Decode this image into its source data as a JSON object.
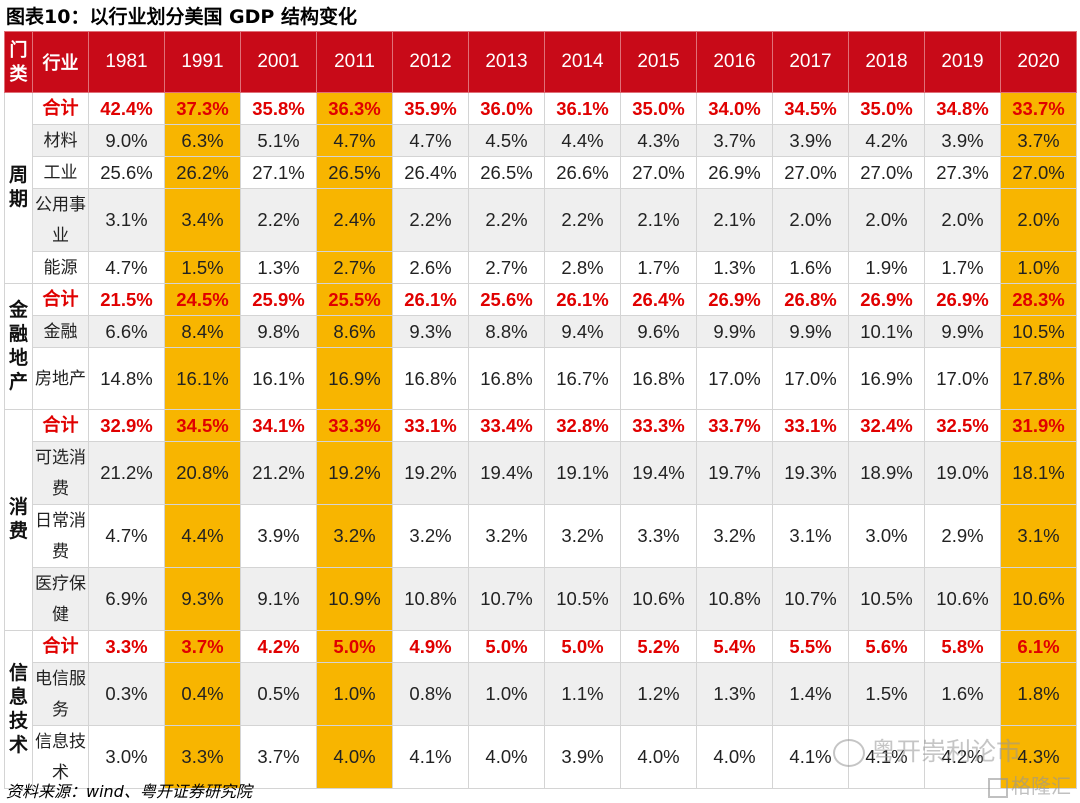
{
  "title": "图表10：以行业划分美国 GDP 结构变化",
  "header": {
    "category": "门类",
    "industry": "行业",
    "years": [
      "1981",
      "1991",
      "2001",
      "2011",
      "2012",
      "2013",
      "2014",
      "2015",
      "2016",
      "2017",
      "2018",
      "2019",
      "2020"
    ]
  },
  "highlight_color": "#f8b500",
  "header_color": "#c80a18",
  "groups": [
    {
      "name": "周期",
      "rows": [
        {
          "label": "合计",
          "total": true,
          "values": [
            "42.4%",
            "37.3%",
            "35.8%",
            "36.3%",
            "35.9%",
            "36.0%",
            "36.1%",
            "35.0%",
            "34.0%",
            "34.5%",
            "35.0%",
            "34.8%",
            "33.7%"
          ]
        },
        {
          "label": "材料",
          "values": [
            "9.0%",
            "6.3%",
            "5.1%",
            "4.7%",
            "4.7%",
            "4.5%",
            "4.4%",
            "4.3%",
            "3.7%",
            "3.9%",
            "4.2%",
            "3.9%",
            "3.7%"
          ]
        },
        {
          "label": "工业",
          "values": [
            "25.6%",
            "26.2%",
            "27.1%",
            "26.5%",
            "26.4%",
            "26.5%",
            "26.6%",
            "27.0%",
            "26.9%",
            "27.0%",
            "27.0%",
            "27.3%",
            "27.0%"
          ]
        },
        {
          "label": "公用事业",
          "values": [
            "3.1%",
            "3.4%",
            "2.2%",
            "2.4%",
            "2.2%",
            "2.2%",
            "2.2%",
            "2.1%",
            "2.1%",
            "2.0%",
            "2.0%",
            "2.0%",
            "2.0%"
          ]
        },
        {
          "label": "能源",
          "values": [
            "4.7%",
            "1.5%",
            "1.3%",
            "2.7%",
            "2.6%",
            "2.7%",
            "2.8%",
            "1.7%",
            "1.3%",
            "1.6%",
            "1.9%",
            "1.7%",
            "1.0%"
          ]
        }
      ]
    },
    {
      "name": "金融地产",
      "rows": [
        {
          "label": "合计",
          "total": true,
          "values": [
            "21.5%",
            "24.5%",
            "25.9%",
            "25.5%",
            "26.1%",
            "25.6%",
            "26.1%",
            "26.4%",
            "26.9%",
            "26.8%",
            "26.9%",
            "26.9%",
            "28.3%"
          ]
        },
        {
          "label": "金融",
          "values": [
            "6.6%",
            "8.4%",
            "9.8%",
            "8.6%",
            "9.3%",
            "8.8%",
            "9.4%",
            "9.6%",
            "9.9%",
            "9.9%",
            "10.1%",
            "9.9%",
            "10.5%"
          ]
        },
        {
          "label": "房地产",
          "values": [
            "14.8%",
            "16.1%",
            "16.1%",
            "16.9%",
            "16.8%",
            "16.8%",
            "16.7%",
            "16.8%",
            "17.0%",
            "17.0%",
            "16.9%",
            "17.0%",
            "17.8%"
          ]
        }
      ]
    },
    {
      "name": "消费",
      "rows": [
        {
          "label": "合计",
          "total": true,
          "values": [
            "32.9%",
            "34.5%",
            "34.1%",
            "33.3%",
            "33.1%",
            "33.4%",
            "32.8%",
            "33.3%",
            "33.7%",
            "33.1%",
            "32.4%",
            "32.5%",
            "31.9%"
          ]
        },
        {
          "label": "可选消费",
          "values": [
            "21.2%",
            "20.8%",
            "21.2%",
            "19.2%",
            "19.2%",
            "19.4%",
            "19.1%",
            "19.4%",
            "19.7%",
            "19.3%",
            "18.9%",
            "19.0%",
            "18.1%"
          ]
        },
        {
          "label": "日常消费",
          "values": [
            "4.7%",
            "4.4%",
            "3.9%",
            "3.2%",
            "3.2%",
            "3.2%",
            "3.2%",
            "3.3%",
            "3.2%",
            "3.1%",
            "3.0%",
            "2.9%",
            "3.1%"
          ]
        },
        {
          "label": "医疗保健",
          "values": [
            "6.9%",
            "9.3%",
            "9.1%",
            "10.9%",
            "10.8%",
            "10.7%",
            "10.5%",
            "10.6%",
            "10.8%",
            "10.7%",
            "10.5%",
            "10.6%",
            "10.6%"
          ]
        }
      ]
    },
    {
      "name": "信息技术",
      "rows": [
        {
          "label": "合计",
          "total": true,
          "values": [
            "3.3%",
            "3.7%",
            "4.2%",
            "5.0%",
            "4.9%",
            "5.0%",
            "5.0%",
            "5.2%",
            "5.4%",
            "5.5%",
            "5.6%",
            "5.8%",
            "6.1%"
          ]
        },
        {
          "label": "电信服务",
          "values": [
            "0.3%",
            "0.4%",
            "0.5%",
            "1.0%",
            "0.8%",
            "1.0%",
            "1.1%",
            "1.2%",
            "1.3%",
            "1.4%",
            "1.5%",
            "1.6%",
            "1.8%"
          ]
        },
        {
          "label": "信息技术",
          "values": [
            "3.0%",
            "3.3%",
            "3.7%",
            "4.0%",
            "4.1%",
            "4.0%",
            "3.9%",
            "4.0%",
            "4.0%",
            "4.1%",
            "4.1%",
            "4.2%",
            "4.3%"
          ]
        }
      ]
    }
  ],
  "source": "资料来源：wind、粤开证券研究院",
  "watermark": "粤开崇利论市",
  "watermark2": "格隆汇"
}
